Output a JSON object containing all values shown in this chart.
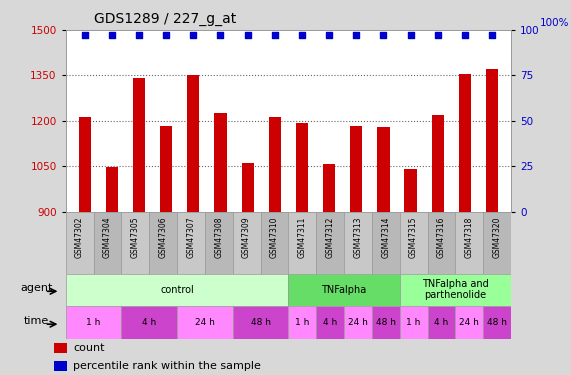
{
  "title": "GDS1289 / 227_g_at",
  "samples": [
    "GSM47302",
    "GSM47304",
    "GSM47305",
    "GSM47306",
    "GSM47307",
    "GSM47308",
    "GSM47309",
    "GSM47310",
    "GSM47311",
    "GSM47312",
    "GSM47313",
    "GSM47314",
    "GSM47315",
    "GSM47316",
    "GSM47318",
    "GSM47320"
  ],
  "counts": [
    1213,
    1048,
    1340,
    1183,
    1350,
    1225,
    1060,
    1213,
    1193,
    1057,
    1183,
    1180,
    1043,
    1220,
    1355,
    1370
  ],
  "bar_color": "#cc0000",
  "dot_color": "#0000cc",
  "ylim_left": [
    900,
    1500
  ],
  "ylim_right": [
    0,
    100
  ],
  "yticks_left": [
    900,
    1050,
    1200,
    1350,
    1500
  ],
  "yticks_right": [
    0,
    25,
    50,
    75,
    100
  ],
  "background_color": "#d8d8d8",
  "plot_bg_color": "#ffffff",
  "agent_groups": [
    {
      "label": "control",
      "start": 0,
      "end": 8,
      "color": "#ccffcc"
    },
    {
      "label": "TNFalpha",
      "start": 8,
      "end": 12,
      "color": "#66dd66"
    },
    {
      "label": "TNFalpha and\nparthenolide",
      "start": 12,
      "end": 16,
      "color": "#99ff99"
    }
  ],
  "time_groups": [
    {
      "label": "1 h",
      "start": 0,
      "end": 2,
      "color": "#ff88ff"
    },
    {
      "label": "4 h",
      "start": 2,
      "end": 4,
      "color": "#cc44cc"
    },
    {
      "label": "24 h",
      "start": 4,
      "end": 6,
      "color": "#ff88ff"
    },
    {
      "label": "48 h",
      "start": 6,
      "end": 8,
      "color": "#cc44cc"
    },
    {
      "label": "1 h",
      "start": 8,
      "end": 9,
      "color": "#ff88ff"
    },
    {
      "label": "4 h",
      "start": 9,
      "end": 10,
      "color": "#cc44cc"
    },
    {
      "label": "24 h",
      "start": 10,
      "end": 11,
      "color": "#ff88ff"
    },
    {
      "label": "48 h",
      "start": 11,
      "end": 12,
      "color": "#cc44cc"
    },
    {
      "label": "1 h",
      "start": 12,
      "end": 13,
      "color": "#ff88ff"
    },
    {
      "label": "4 h",
      "start": 13,
      "end": 14,
      "color": "#cc44cc"
    },
    {
      "label": "24 h",
      "start": 14,
      "end": 15,
      "color": "#ff88ff"
    },
    {
      "label": "48 h",
      "start": 15,
      "end": 16,
      "color": "#cc44cc"
    }
  ],
  "sample_box_colors": [
    "#c8c8c8",
    "#b8b8b8"
  ],
  "legend_count_color": "#cc0000",
  "legend_dot_color": "#0000cc",
  "title_fontsize": 10,
  "tick_fontsize": 7.5,
  "label_fontsize": 7,
  "bar_width": 0.45,
  "dotted_line_color": "#666666",
  "right_label": "100%"
}
